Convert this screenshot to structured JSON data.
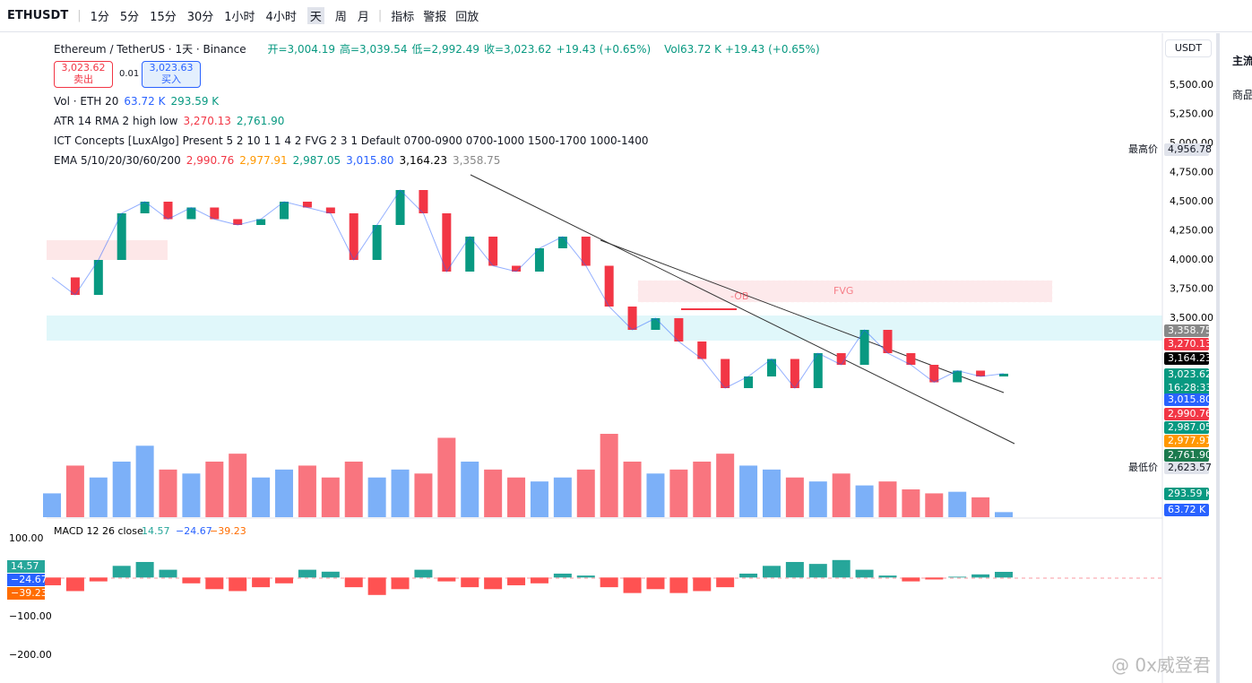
{
  "toolbar": {
    "symbol": "ETHUSDT",
    "intervals": [
      "1分",
      "5分",
      "15分",
      "30分",
      "1小时",
      "4小时",
      "天",
      "周",
      "月"
    ],
    "indicators": "指标",
    "alert": "警报",
    "replay": "回放"
  },
  "legend": {
    "title": "Ethereum / TetherUS · 1天 · Binance",
    "ohlc": [
      "开=3,004.19",
      "高=3,039.54",
      "低=2,992.49",
      "收=3,023.62",
      "+19.43 (+0.65%)"
    ],
    "vol": "Vol63.72 K +19.43 (+0.65%)",
    "sell_price": "3,023.62",
    "sell": "卖出",
    "qty": "0.01",
    "buy_price": "3,023.63",
    "buy": "买入",
    "indicators": [
      {
        "name": "Vol · ETH 20",
        "values": [
          "63.72 K",
          "293.59 K"
        ]
      },
      {
        "name": "ATR 14 RMA 2 high low",
        "values": [
          "3,270.13",
          "2,761.90"
        ]
      },
      {
        "name": "ICT Concepts [LuxAlgo] Present 5 2 10 1 1 4 2 FVG 2 3 1 Default 0700-0900 0700-1000 1500-1700 1000-1400",
        "values": []
      },
      {
        "name": "EMA 5/10/20/30/60/200",
        "values": [
          "2,990.76",
          "2,977.91",
          "2,987.05",
          "3,015.80",
          "3,164.23",
          "3,358.75"
        ]
      }
    ]
  },
  "currency": "USDT",
  "price_axis": [
    "5,500.00",
    "5,250.00",
    "5,000.00",
    "4,750.00",
    "4,500.00",
    "4,250.00",
    "4,000.00",
    "3,750.00",
    "3,500.00"
  ],
  "price_tags": [
    {
      "label": "4,956.78",
      "note": "最高价"
    },
    {
      "label": "3,358.75"
    },
    {
      "label": "3,270.13"
    },
    {
      "label": "3,164.23"
    },
    {
      "label": "3,023.62",
      "note": "16:28:33"
    },
    {
      "label": "3,015.80"
    },
    {
      "label": "2,990.76"
    },
    {
      "label": "2,987.05"
    },
    {
      "label": "2,977.91"
    },
    {
      "label": "2,761.90"
    },
    {
      "label": "2,623.57",
      "note": "最低价"
    },
    {
      "label": "293.59 K"
    },
    {
      "label": "63.72 K"
    }
  ],
  "chart": {
    "closes": [
      3850,
      3700,
      4000,
      4400,
      4500,
      4350,
      4450,
      4350,
      4300,
      4350,
      4500,
      4450,
      4400,
      4000,
      4300,
      4600,
      4400,
      3900,
      4200,
      3950,
      3900,
      4100,
      4200,
      3950,
      3600,
      3400,
      3500,
      3300,
      3150,
      2900,
      3000,
      3150,
      2900,
      3200,
      3100,
      3400,
      3200,
      3100,
      2950,
      3050,
      3000,
      3023.62
    ],
    "volume": [
      300,
      650,
      500,
      700,
      900,
      600,
      550,
      700,
      800,
      500,
      600,
      650,
      500,
      700,
      500,
      600,
      550,
      1000,
      700,
      600,
      500,
      450,
      500,
      600,
      1050,
      700,
      550,
      600,
      700,
      800,
      650,
      600,
      500,
      450,
      550,
      400,
      450,
      350,
      300,
      320,
      250,
      63.72
    ],
    "macd_hist": [
      -20,
      -35,
      -10,
      30,
      40,
      20,
      -15,
      -30,
      -35,
      -25,
      -15,
      20,
      15,
      -25,
      -45,
      -30,
      20,
      -10,
      -25,
      -30,
      -20,
      -15,
      10,
      5,
      -25,
      -40,
      -30,
      -40,
      -35,
      -25,
      10,
      30,
      40,
      35,
      45,
      20,
      5,
      -10,
      -5,
      2,
      8,
      14.57
    ],
    "macd_axis": [
      "100.00",
      "−100.00",
      "−200.00"
    ],
    "macd_label": "MACD 12 26 close",
    "macd_values": [
      "14.57",
      "−24.67",
      "−39.23"
    ],
    "fvg": "FVG",
    "ob": "-OB"
  },
  "sidebar": [
    "主流",
    "商品"
  ],
  "watermark": "@ 0x威登君"
}
